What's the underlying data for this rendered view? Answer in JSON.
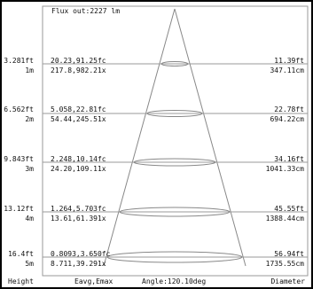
{
  "flux": "Flux out:2227 lm",
  "rows": [
    {
      "height_ft": "3.281ft",
      "height_m": "1m",
      "illum_fc": "20.23,91.25fc",
      "illum_lx": "217.8,982.21x",
      "diam_ft": "11.39ft",
      "diam_cm": "347.11cm"
    },
    {
      "height_ft": "6.562ft",
      "height_m": "2m",
      "illum_fc": "5.058,22.81fc",
      "illum_lx": "54.44,245.51x",
      "diam_ft": "22.78ft",
      "diam_cm": "694.22cm"
    },
    {
      "height_ft": "9.843ft",
      "height_m": "3m",
      "illum_fc": "2.248,10.14fc",
      "illum_lx": "24.20,109.11x",
      "diam_ft": "34.16ft",
      "diam_cm": "1041.33cm"
    },
    {
      "height_ft": "13.12ft",
      "height_m": "4m",
      "illum_fc": "1.264,5.703fc",
      "illum_lx": "13.61,61.391x",
      "diam_ft": "45.55ft",
      "diam_cm": "1388.44cm"
    },
    {
      "height_ft": "16.4ft",
      "height_m": "5m",
      "illum_fc": "0.8093,3.650fc",
      "illum_lx": "8.711,39.291x",
      "diam_ft": "56.94ft",
      "diam_cm": "1735.55cm"
    }
  ],
  "footer": {
    "height": "Height",
    "eavg": "Eavg,Emax",
    "angle": "Angle:120.10deg",
    "diameter": "Diameter"
  }
}
